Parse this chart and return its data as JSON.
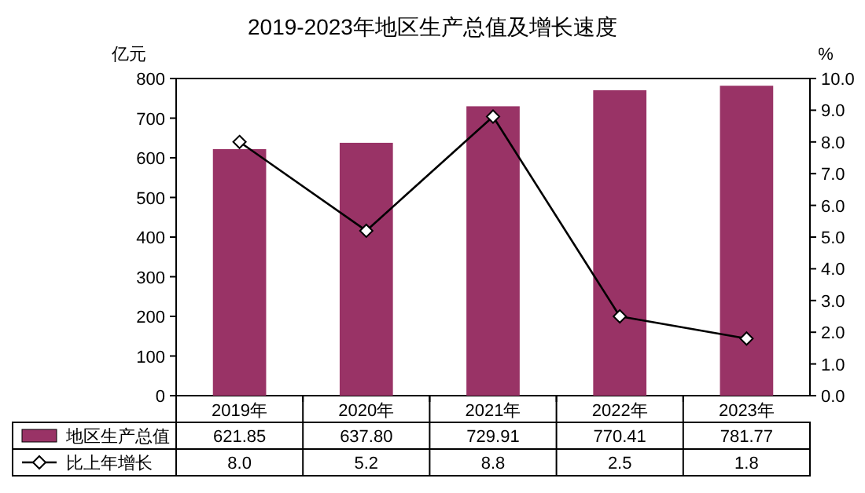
{
  "chart_data": {
    "type": "bar",
    "title": "2019-2023年地区生产总值及增长速度",
    "ylabel": "亿元",
    "y2label": "%",
    "categories": [
      "2019年",
      "2020年",
      "2021年",
      "2022年",
      "2023年"
    ],
    "series": [
      {
        "name": "地区生产总值",
        "color": "#993366",
        "values": [
          621.85,
          637.8,
          729.91,
          770.41,
          781.77
        ],
        "value_labels": [
          "621.85",
          "637.80",
          "729.91",
          "770.41",
          "781.77"
        ]
      },
      {
        "name": "比上年增长",
        "type": "line",
        "axis": "y2",
        "color": "#000000",
        "marker": "diamond",
        "values": [
          8.0,
          5.2,
          8.8,
          2.5,
          1.8
        ],
        "value_labels": [
          "8.0",
          "5.2",
          "8.8",
          "2.5",
          "1.8"
        ]
      }
    ],
    "ylim": [
      0,
      800
    ],
    "yticks": [
      0,
      100,
      200,
      300,
      400,
      500,
      600,
      700,
      800
    ],
    "y2lim": [
      0,
      10
    ],
    "y2ticks": [
      {
        "value": 0,
        "label": "0.0"
      },
      {
        "value": 1,
        "label": "1.0"
      },
      {
        "value": 2,
        "label": "2.0"
      },
      {
        "value": 3,
        "label": "3.0"
      },
      {
        "value": 4,
        "label": "4.0"
      },
      {
        "value": 5,
        "label": "5.0"
      },
      {
        "value": 6,
        "label": "6.0"
      },
      {
        "value": 7,
        "label": "7.0"
      },
      {
        "value": 8,
        "label": "8.0"
      },
      {
        "value": 9,
        "label": "9.0"
      },
      {
        "value": 10,
        "label": "10.0"
      }
    ],
    "grid": false,
    "legend": "bottom"
  }
}
